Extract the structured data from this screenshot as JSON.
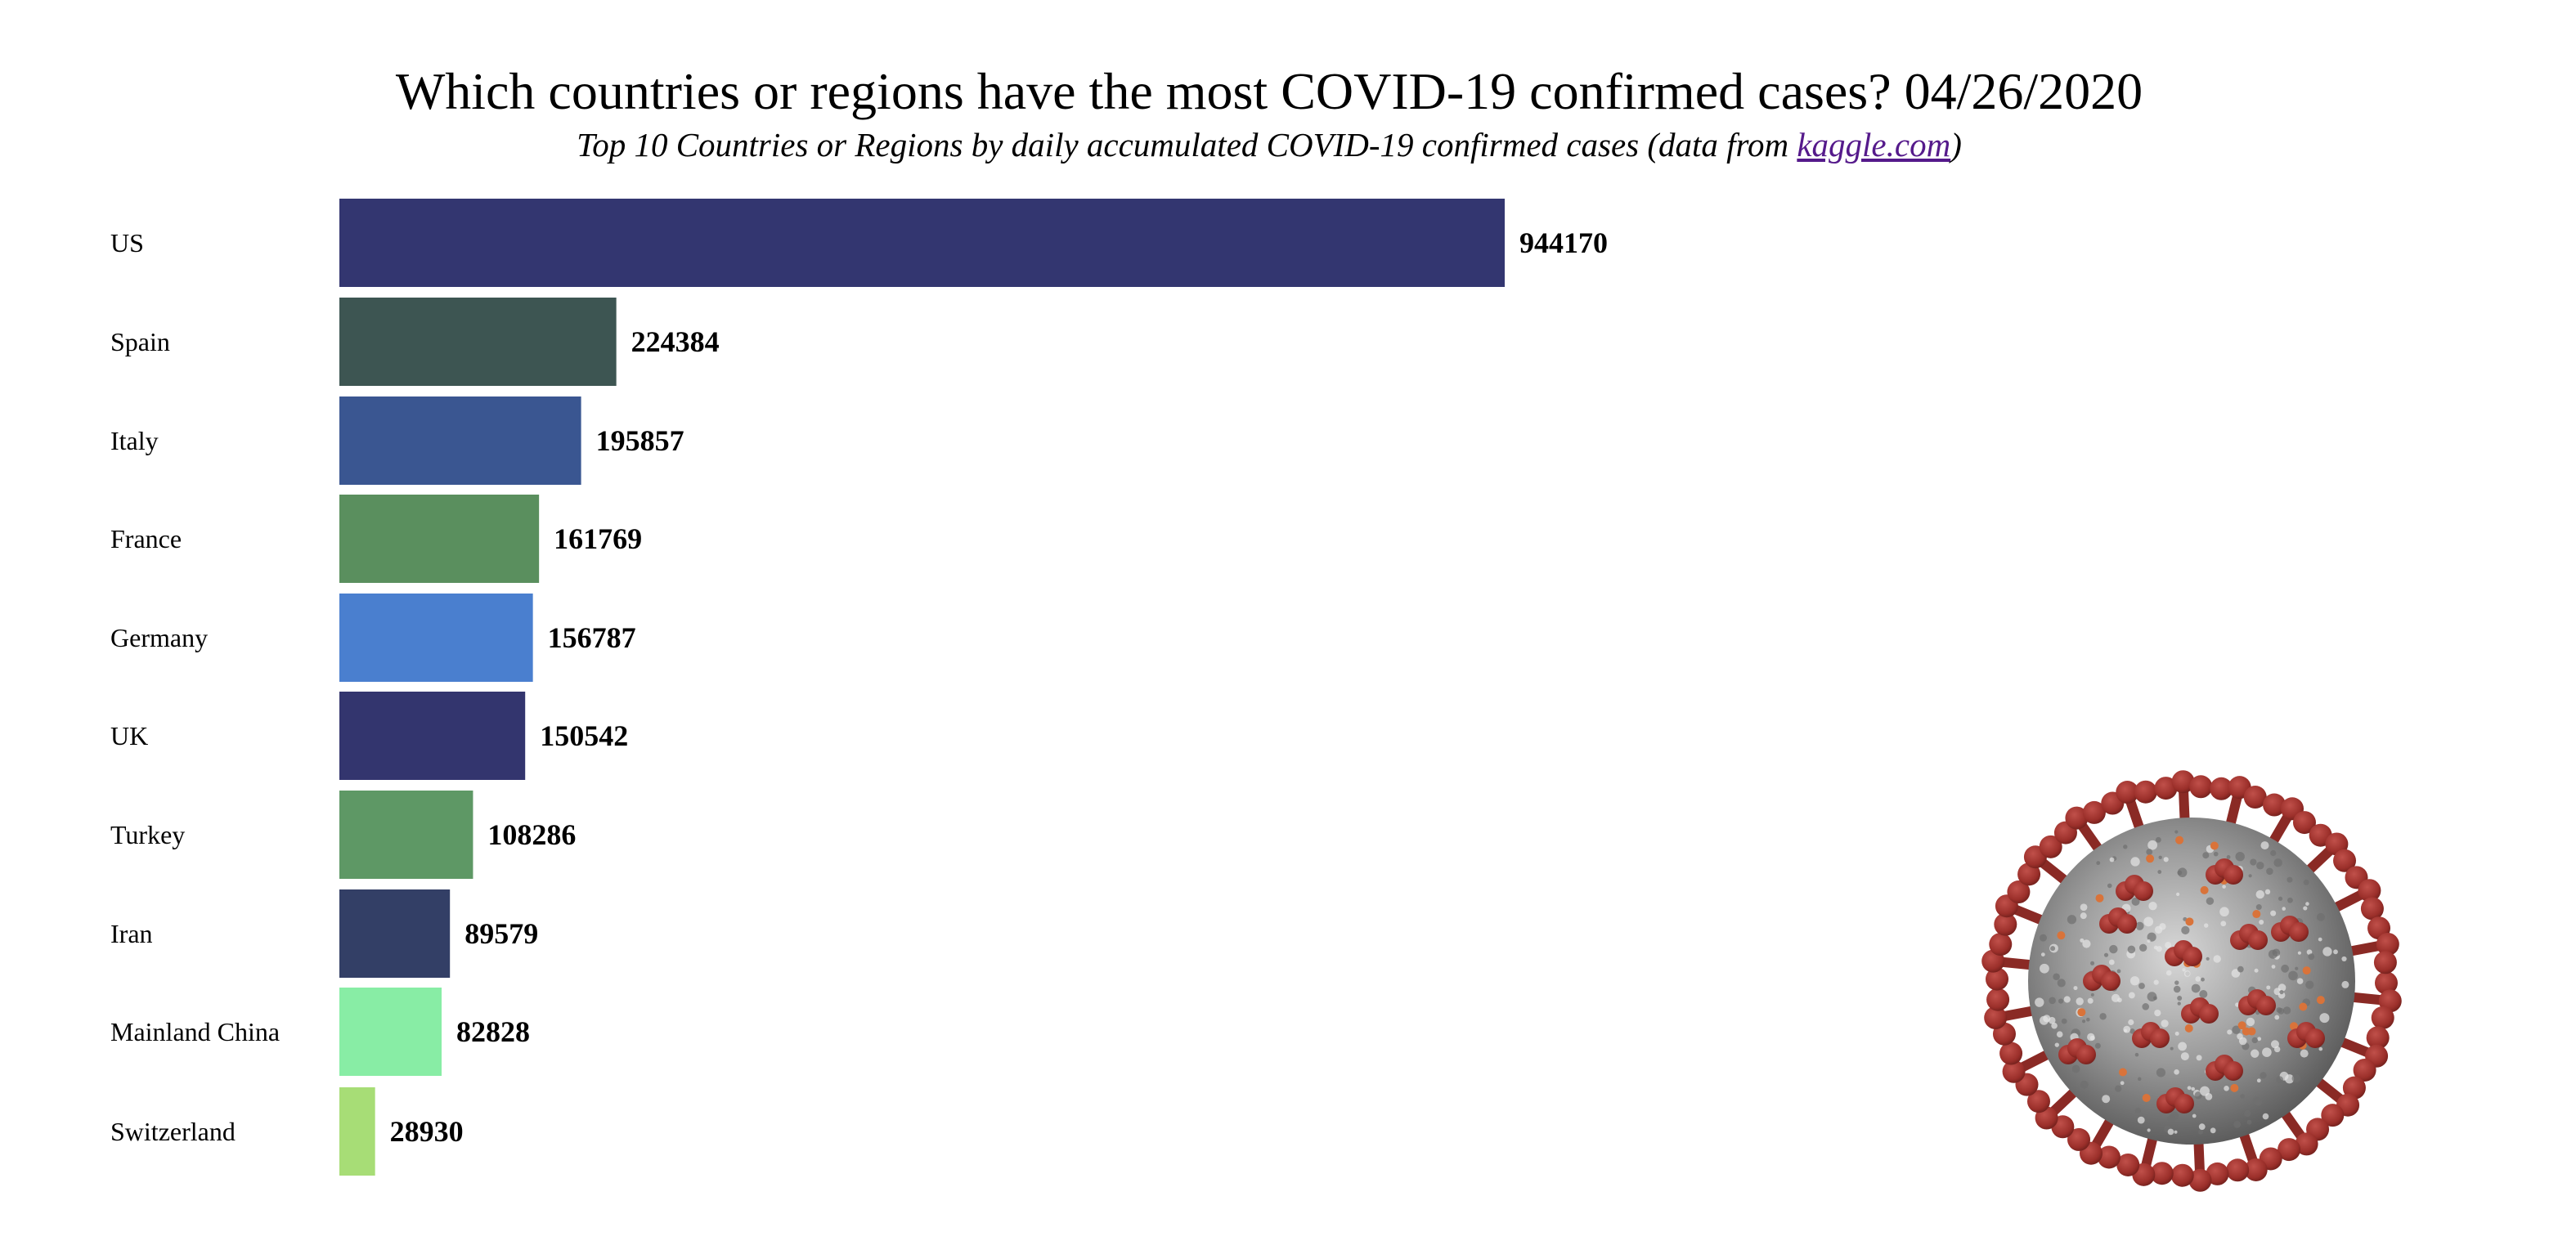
{
  "header": {
    "title": "Which countries or regions have the most COVID-19 confirmed cases? 04/26/2020",
    "subtitle_prefix": "Top 10 Countries or Regions by daily accumulated COVID-19 confirmed cases (data from ",
    "subtitle_link": "kaggle.com",
    "subtitle_suffix": ")"
  },
  "decoration": {
    "image": "coronavirus-illustration-icon"
  },
  "chart_data": {
    "type": "bar",
    "orientation": "horizontal",
    "categories": [
      "US",
      "Spain",
      "Italy",
      "France",
      "Germany",
      "UK",
      "Turkey",
      "Iran",
      "Mainland China",
      "Switzerland"
    ],
    "values": [
      944170,
      224384,
      195857,
      161769,
      156787,
      150542,
      108286,
      89579,
      82828,
      28930
    ],
    "colors": [
      "#333670",
      "#3d5552",
      "#3a5691",
      "#5a8f5e",
      "#4a7fcf",
      "#33356e",
      "#5e9865",
      "#333f66",
      "#88eda5",
      "#a7dd76"
    ],
    "title": "Which countries or regions have the most COVID-19 confirmed cases? 04/26/2020",
    "subtitle": "Top 10 Countries or Regions by daily accumulated COVID-19 confirmed cases (data from kaggle.com)",
    "xlabel": "",
    "ylabel": "",
    "grid": false,
    "legend": "none"
  }
}
